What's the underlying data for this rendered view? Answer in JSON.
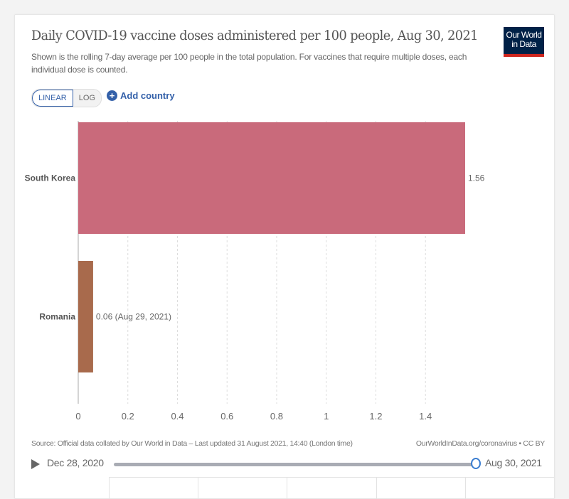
{
  "header": {
    "title": "Daily COVID-19 vaccine doses administered per 100 people, Aug 30, 2021",
    "subtitle": "Shown is the rolling 7-day average per 100 people in the total population. For vaccines that require multiple doses, each individual dose is counted.",
    "logo_line1": "Our World",
    "logo_line2": "in Data"
  },
  "controls": {
    "linear_label": "LINEAR",
    "log_label": "LOG",
    "add_country_label": "Add country",
    "add_country_icon": "plus-circle-icon"
  },
  "chart_data": {
    "type": "bar",
    "orientation": "horizontal",
    "categories": [
      "South Korea",
      "Romania"
    ],
    "values": [
      1.56,
      0.06
    ],
    "value_labels": [
      "1.56",
      "0.06 (Aug 29, 2021)"
    ],
    "colors": [
      "#c96a7b",
      "#a86a4c"
    ],
    "title": "Daily COVID-19 vaccine doses administered per 100 people, Aug 30, 2021",
    "xlabel": "",
    "ylabel": "",
    "xlim": [
      0,
      1.56
    ],
    "xticks": [
      0,
      0.2,
      0.4,
      0.6,
      0.8,
      1,
      1.2,
      1.4
    ],
    "xtick_labels": [
      "0",
      "0.2",
      "0.4",
      "0.6",
      "0.8",
      "1",
      "1.2",
      "1.4"
    ],
    "grid": "vertical-dashed"
  },
  "footer": {
    "source": "Source: Official data collated by Our World in Data – Last updated 31 August 2021, 14:40 (London time)",
    "url": "OurWorldInData.org/coronavirus • CC BY"
  },
  "timeline": {
    "start_label": "Dec 28, 2020",
    "end_label": "Aug 30, 2021",
    "position_fraction": 1.0
  }
}
